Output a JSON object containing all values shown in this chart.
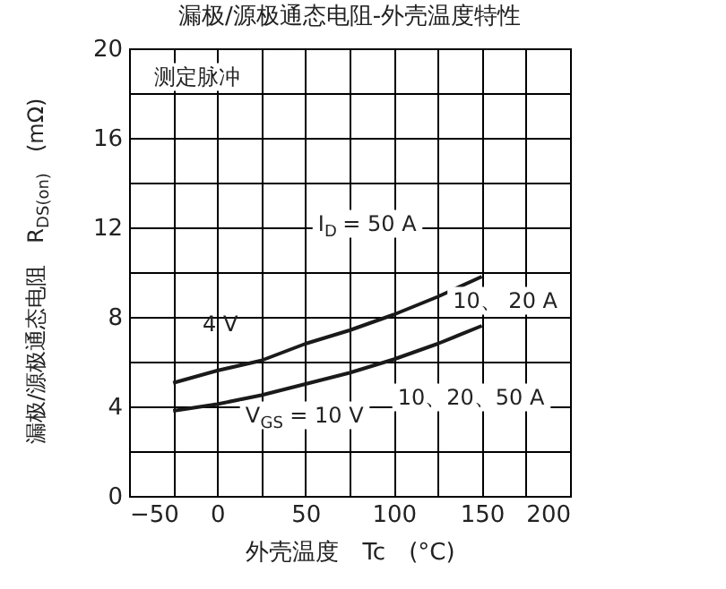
{
  "chart_data": {
    "type": "line",
    "title": "漏极/源极通态电阻-外壳温度特性",
    "xlabel": "外壳温度　Tc　(°C)",
    "ylabel": "漏极/源极通态电阻　R$_{DS(on)}$　(mΩ)",
    "x": [
      -25,
      0,
      25,
      50,
      75,
      100,
      125,
      150
    ],
    "series": [
      {
        "color": "#1a1a1a",
        "values": [
          5.05,
          5.6,
          6.05,
          6.8,
          7.4,
          8.1,
          8.9,
          9.8
        ]
      },
      {
        "color": "#1a1a1a",
        "values": [
          3.8,
          4.1,
          4.5,
          5.0,
          5.5,
          6.1,
          6.8,
          7.6
        ]
      }
    ],
    "xlim": [
      -50,
      200
    ],
    "ylim": [
      0,
      20
    ],
    "xticks": [
      -50,
      {
        "value": -25,
        "label": null
      },
      0,
      {
        "value": 25,
        "label": null
      },
      50,
      {
        "value": 75,
        "label": null
      },
      100,
      {
        "value": 125,
        "label": null
      },
      150,
      {
        "value": 175,
        "label": null
      },
      200
    ],
    "yticks": [
      0,
      {
        "value": 2,
        "label": null
      },
      4,
      {
        "value": 6,
        "label": null
      },
      8,
      {
        "value": 10,
        "label": null
      },
      12,
      {
        "value": 14,
        "label": null
      },
      16,
      {
        "value": 18,
        "label": null
      },
      20
    ],
    "grid": true,
    "line_style": "solid",
    "marker": "none",
    "annotations": [
      "测定脉冲",
      "I$_{D}$ = 50 A",
      "4 V",
      "V$_{GS}$ = 10 V",
      "10、 20 A",
      "10、20、50 A"
    ]
  }
}
